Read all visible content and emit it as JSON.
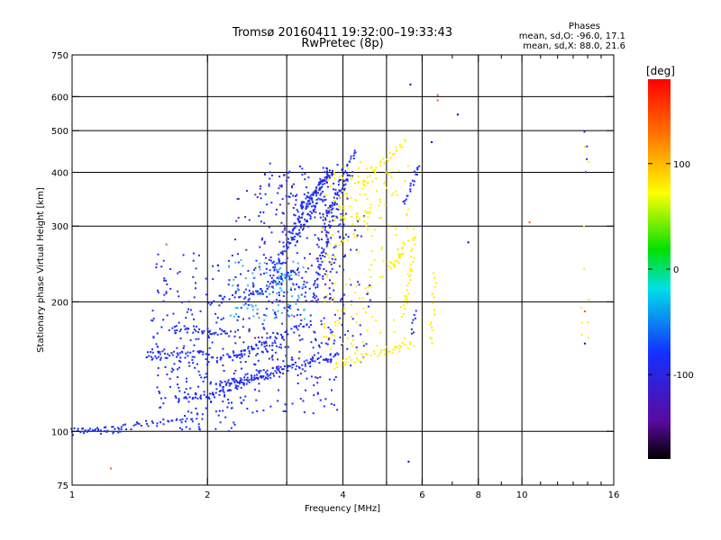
{
  "chart_data": {
    "type": "scatter",
    "title": "Tromsø 20160411 19:32:00–19:33:43",
    "subtitle": "RwPretec (8p)",
    "stats": {
      "heading": "Phases",
      "line_o": "mean, sd,O: -96.0, 17.1",
      "line_x": "mean, sd,X:  88.0, 21.6"
    },
    "xlabel": "Frequency [MHz]",
    "ylabel": "Stationary phase Virtual Height [km]",
    "x_scale": "log",
    "y_scale": "log",
    "xlim": [
      1,
      16
    ],
    "ylim": [
      75,
      750
    ],
    "grid": true,
    "x_ticks": [
      1,
      2,
      4,
      6,
      8,
      10,
      16
    ],
    "x_tick_labels": [
      "1",
      "2",
      "4",
      "6",
      "8",
      "10",
      "16"
    ],
    "x_minor": [
      3,
      5,
      7,
      9,
      11,
      12,
      13,
      14,
      15
    ],
    "x_grid": [
      2,
      3,
      4,
      5,
      6,
      8,
      10
    ],
    "y_ticks": [
      75,
      100,
      200,
      300,
      400,
      500,
      600,
      750
    ],
    "y_tick_labels": [
      "75",
      "100",
      "200",
      "300",
      "400",
      "500",
      "600",
      "750"
    ],
    "y_grid": [
      100,
      200,
      300,
      400,
      500,
      600
    ],
    "colorbar": {
      "unit": "[deg]",
      "range": [
        -180,
        180
      ],
      "ticks": [
        100,
        0,
        -100
      ],
      "tick_labels": [
        "100",
        "0",
        "-100"
      ],
      "colormap": "rainbow"
    },
    "series": [
      {
        "mode": "O",
        "color": "#1e2ef0",
        "traces": [
          {
            "x": [
              1.0,
              1.3
            ],
            "y": [
              100,
              101
            ],
            "n": 40
          },
          {
            "x": [
              1.3,
              1.9
            ],
            "y": [
              102,
              108
            ],
            "n": 35
          },
          {
            "x": [
              1.45,
              2.0
            ],
            "y": [
              150,
              152
            ],
            "n": 45
          },
          {
            "x": [
              1.65,
              2.3
            ],
            "y": [
              175,
              168
            ],
            "n": 40
          },
          {
            "x": [
              1.8,
              2.8
            ],
            "y": [
              118,
              135
            ],
            "n": 60
          },
          {
            "x": [
              2.1,
              3.9
            ],
            "y": [
              128,
              150
            ],
            "n": 90
          },
          {
            "x": [
              2.0,
              3.0
            ],
            "y": [
              145,
              160
            ],
            "n": 40
          },
          {
            "x": [
              2.3,
              3.4
            ],
            "y": [
              150,
              180
            ],
            "n": 45
          },
          {
            "x": [
              2.0,
              2.6
            ],
            "y": [
              200,
              215
            ],
            "n": 20
          },
          {
            "x": [
              2.4,
              3.2
            ],
            "y": [
              200,
              240
            ],
            "n": 40
          },
          {
            "x": [
              2.8,
              3.6
            ],
            "y": [
              240,
              350
            ],
            "n": 60
          },
          {
            "x": [
              3.0,
              3.7
            ],
            "y": [
              280,
              400
            ],
            "n": 60
          },
          {
            "x": [
              3.2,
              3.8
            ],
            "y": [
              330,
              400
            ],
            "n": 50
          },
          {
            "x": [
              3.4,
              3.8
            ],
            "y": [
              200,
              320
            ],
            "n": 40
          },
          {
            "x": [
              3.6,
              4.2
            ],
            "y": [
              310,
              400
            ],
            "n": 40
          },
          {
            "x": [
              3.9,
              4.3
            ],
            "y": [
              380,
              450
            ],
            "n": 20
          },
          {
            "x": [
              5.5,
              5.9
            ],
            "y": [
              340,
              420
            ],
            "n": 20
          },
          {
            "x": [
              5.7,
              5.8
            ],
            "y": [
              170,
              190
            ],
            "n": 8
          },
          {
            "x": [
              13.8,
              13.9
            ],
            "y": [
              400,
              490
            ],
            "n": 4
          }
        ],
        "clouds": [
          {
            "x": [
              1.5,
              3.9
            ],
            "y": [
              110,
              260
            ],
            "n": 380
          },
          {
            "x": [
              2.6,
              4.1
            ],
            "y": [
              200,
              420
            ],
            "n": 220
          },
          {
            "x": [
              1.7,
              2.6
            ],
            "y": [
              100,
              150
            ],
            "n": 60
          },
          {
            "x": [
              3.6,
              4.6
            ],
            "y": [
              140,
              330
            ],
            "n": 60
          }
        ]
      },
      {
        "mode": "X",
        "color": "#ffef00",
        "traces": [
          {
            "x": [
              3.8,
              5.7
            ],
            "y": [
              142,
              160
            ],
            "n": 45
          },
          {
            "x": [
              4.6,
              5.5
            ],
            "y": [
              400,
              470
            ],
            "n": 25
          },
          {
            "x": [
              5.1,
              5.5
            ],
            "y": [
              240,
              270
            ],
            "n": 20
          },
          {
            "x": [
              5.5,
              5.8
            ],
            "y": [
              190,
              290
            ],
            "n": 30
          },
          {
            "x": [
              6.3,
              6.4
            ],
            "y": [
              160,
              230
            ],
            "n": 18
          }
        ],
        "clouds": [
          {
            "x": [
              3.6,
              5.6
            ],
            "y": [
              150,
              430
            ],
            "n": 180
          },
          {
            "x": [
              3.9,
              4.6
            ],
            "y": [
              300,
              400
            ],
            "n": 40
          },
          {
            "x": [
              13.5,
              14.1
            ],
            "y": [
              155,
              540
            ],
            "n": 10
          }
        ]
      },
      {
        "mode": "mixed",
        "color": "#2fb4ff",
        "clouds": [
          {
            "x": [
              2.2,
              3.3
            ],
            "y": [
              180,
              250
            ],
            "n": 70
          },
          {
            "x": [
              2.7,
              3.0
            ],
            "y": [
              215,
              240
            ],
            "n": 15
          }
        ]
      },
      {
        "mode": "mixed",
        "color": "#6a1fa8",
        "clouds": [
          {
            "x": [
              2.3,
              3.8
            ],
            "y": [
              130,
              400
            ],
            "n": 80
          }
        ]
      },
      {
        "mode": "outliers",
        "color": "#e06020",
        "points": [
          {
            "x": 1.22,
            "y": 82
          },
          {
            "x": 1.62,
            "y": 272
          },
          {
            "x": 6.5,
            "y": 605
          },
          {
            "x": 6.5,
            "y": 588
          },
          {
            "x": 10.4,
            "y": 306
          },
          {
            "x": 13.8,
            "y": 190
          }
        ]
      },
      {
        "mode": "outliers",
        "color": "#0000c8",
        "points": [
          {
            "x": 5.65,
            "y": 640
          },
          {
            "x": 6.3,
            "y": 470
          },
          {
            "x": 7.6,
            "y": 275
          },
          {
            "x": 7.2,
            "y": 545
          },
          {
            "x": 5.6,
            "y": 85
          },
          {
            "x": 13.8,
            "y": 160
          }
        ]
      }
    ]
  }
}
